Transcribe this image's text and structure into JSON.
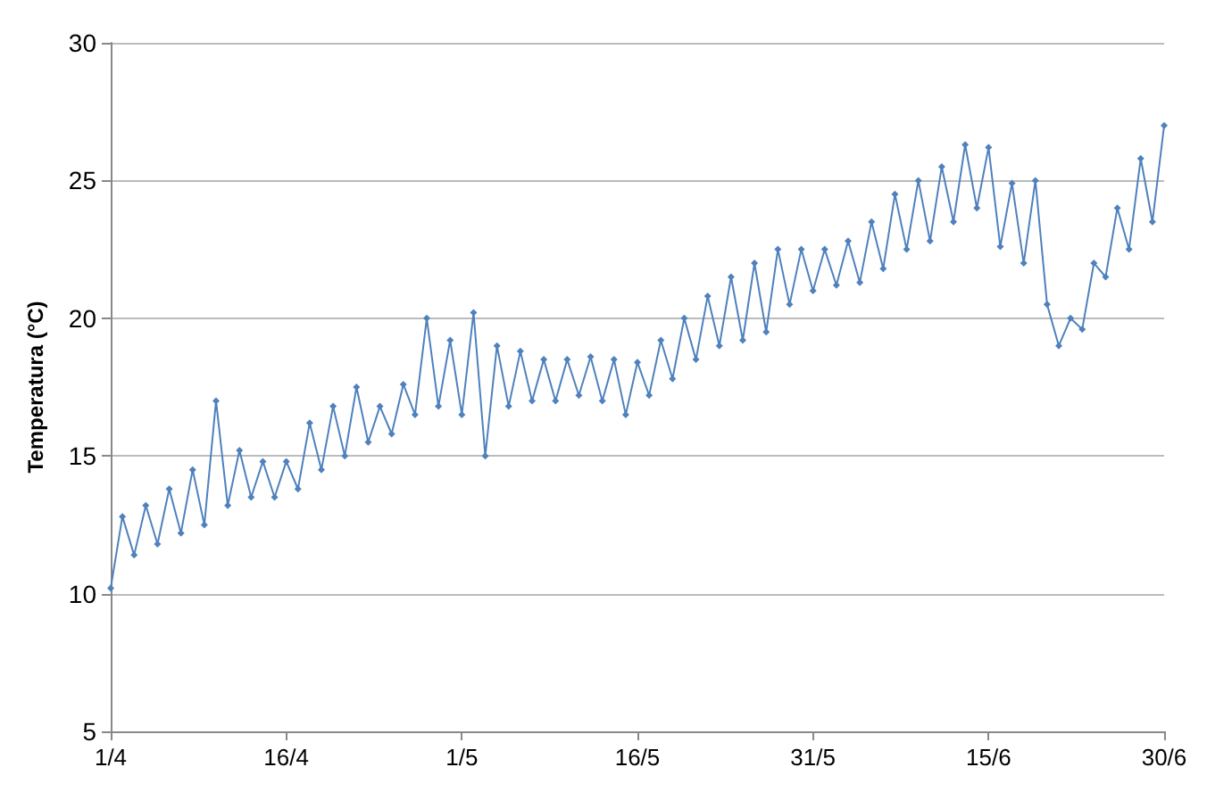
{
  "chart_data": {
    "type": "line",
    "ylabel": "Temperatura (°C)",
    "x": [
      "--04-01",
      "--04-02",
      "--04-03",
      "--04-04",
      "--04-05",
      "--04-06",
      "--04-07",
      "--04-08",
      "--04-09",
      "--04-10",
      "--04-11",
      "--04-12",
      "--04-13",
      "--04-14",
      "--04-15",
      "--04-16",
      "--04-17",
      "--04-18",
      "--04-19",
      "--04-20",
      "--04-21",
      "--04-22",
      "--04-23",
      "--04-24",
      "--04-25",
      "--04-26",
      "--04-27",
      "--04-28",
      "--04-29",
      "--04-30",
      "--05-01",
      "--05-02",
      "--05-03",
      "--05-04",
      "--05-05",
      "--05-06",
      "--05-07",
      "--05-08",
      "--05-09",
      "--05-10",
      "--05-11",
      "--05-12",
      "--05-13",
      "--05-14",
      "--05-15",
      "--05-16",
      "--05-17",
      "--05-18",
      "--05-19",
      "--05-20",
      "--05-21",
      "--05-22",
      "--05-23",
      "--05-24",
      "--05-25",
      "--05-26",
      "--05-27",
      "--05-28",
      "--05-29",
      "--05-30",
      "--05-31",
      "--06-01",
      "--06-02",
      "--06-03",
      "--06-04",
      "--06-05",
      "--06-06",
      "--06-07",
      "--06-08",
      "--06-09",
      "--06-10",
      "--06-11",
      "--06-12",
      "--06-13",
      "--06-14",
      "--06-15",
      "--06-16",
      "--06-17",
      "--06-18",
      "--06-19",
      "--06-20",
      "--06-21",
      "--06-22",
      "--06-23",
      "--06-24",
      "--06-25",
      "--06-26",
      "--06-27",
      "--06-28",
      "--06-29",
      "--06-30"
    ],
    "series": [
      {
        "color": "#4f81bd",
        "values": [
          10.2,
          12.8,
          11.4,
          13.2,
          11.8,
          13.8,
          12.2,
          14.5,
          12.5,
          17.0,
          13.2,
          15.2,
          13.5,
          14.8,
          13.5,
          14.8,
          13.8,
          16.2,
          14.5,
          16.8,
          15.0,
          17.5,
          15.5,
          16.8,
          15.8,
          17.6,
          16.5,
          20.0,
          16.8,
          19.2,
          16.5,
          20.2,
          15.0,
          19.0,
          16.8,
          18.8,
          17.0,
          18.5,
          17.0,
          18.5,
          17.2,
          18.6,
          17.0,
          18.5,
          16.5,
          18.4,
          17.2,
          19.2,
          17.8,
          20.0,
          18.5,
          20.8,
          19.0,
          21.5,
          19.2,
          22.0,
          19.5,
          22.5,
          20.5,
          22.5,
          21.0,
          22.5,
          21.2,
          22.8,
          21.3,
          23.5,
          21.8,
          24.5,
          22.5,
          25.0,
          22.8,
          25.5,
          23.5,
          26.3,
          24.0,
          26.2,
          22.6,
          24.9,
          22.0,
          25.0,
          20.5,
          19.0,
          20.0,
          19.6,
          22.0,
          21.5,
          24.0,
          22.5,
          25.8,
          23.5,
          27.0
        ]
      }
    ],
    "xlim": [
      "--04-01",
      "--06-30"
    ],
    "xticks": [
      {
        "value": "--04-01",
        "label": "1/4"
      },
      {
        "value": "--04-16",
        "label": "16/4"
      },
      {
        "value": "--05-01",
        "label": "1/5"
      },
      {
        "value": "--05-16",
        "label": "16/5"
      },
      {
        "value": "--05-31",
        "label": "31/5"
      },
      {
        "value": "--06-15",
        "label": "15/6"
      },
      {
        "value": "--06-30",
        "label": "30/6"
      }
    ],
    "ylim": [
      5,
      30
    ],
    "yticks": [
      5,
      10,
      15,
      20,
      25,
      30
    ],
    "grid": "y",
    "marker": "diamond",
    "line_style": "solid"
  }
}
